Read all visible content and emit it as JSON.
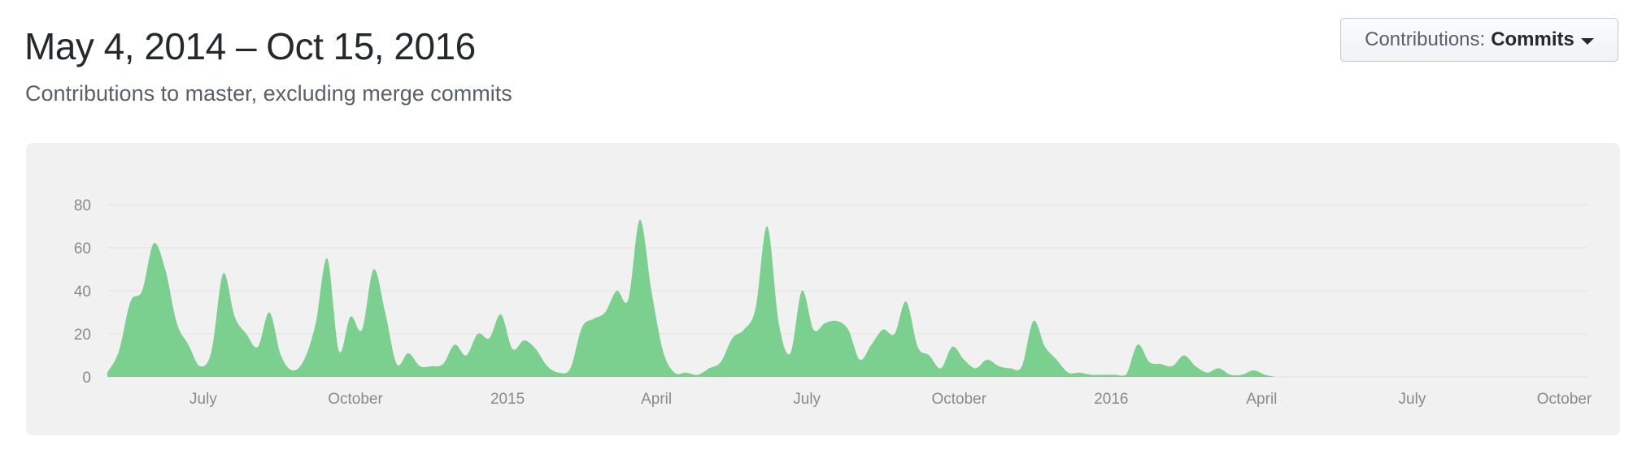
{
  "header": {
    "title": "May 4, 2014 – Oct 15, 2016",
    "subtitle": "Contributions to master, excluding merge commits"
  },
  "toolbar": {
    "contributions_label": "Contributions:",
    "contributions_value": "Commits",
    "caret_icon": "caret-down-icon"
  },
  "chart_data": {
    "type": "area",
    "title": "",
    "xlabel": "",
    "ylabel": "",
    "ylim": [
      0,
      80
    ],
    "yticks": [
      0,
      20,
      40,
      60,
      80
    ],
    "grid": true,
    "color": "#7bcf8f",
    "x_tick_labels": [
      {
        "label": "July",
        "date": "2014-07-01"
      },
      {
        "label": "October",
        "date": "2014-10-01"
      },
      {
        "label": "2015",
        "date": "2015-01-01"
      },
      {
        "label": "April",
        "date": "2015-04-01"
      },
      {
        "label": "July",
        "date": "2015-07-01"
      },
      {
        "label": "October",
        "date": "2015-10-01"
      },
      {
        "label": "2016",
        "date": "2016-01-01"
      },
      {
        "label": "April",
        "date": "2016-04-01"
      },
      {
        "label": "July",
        "date": "2016-07-01"
      },
      {
        "label": "October",
        "date": "2016-10-01"
      }
    ],
    "x_range": [
      "2014-05-04",
      "2016-10-15"
    ],
    "x": [
      "2014-05-04",
      "2014-05-11",
      "2014-05-18",
      "2014-05-25",
      "2014-06-01",
      "2014-06-08",
      "2014-06-15",
      "2014-06-22",
      "2014-06-29",
      "2014-07-06",
      "2014-07-13",
      "2014-07-20",
      "2014-07-27",
      "2014-08-03",
      "2014-08-10",
      "2014-08-17",
      "2014-08-24",
      "2014-08-31",
      "2014-09-07",
      "2014-09-14",
      "2014-09-21",
      "2014-09-28",
      "2014-10-05",
      "2014-10-12",
      "2014-10-19",
      "2014-10-26",
      "2014-11-02",
      "2014-11-09",
      "2014-11-16",
      "2014-11-23",
      "2014-11-30",
      "2014-12-07",
      "2014-12-14",
      "2014-12-21",
      "2014-12-28",
      "2015-01-04",
      "2015-01-11",
      "2015-01-18",
      "2015-01-25",
      "2015-02-01",
      "2015-02-08",
      "2015-02-15",
      "2015-02-22",
      "2015-03-01",
      "2015-03-08",
      "2015-03-15",
      "2015-03-22",
      "2015-03-29",
      "2015-04-05",
      "2015-04-12",
      "2015-04-19",
      "2015-04-26",
      "2015-05-03",
      "2015-05-10",
      "2015-05-17",
      "2015-05-24",
      "2015-05-31",
      "2015-06-07",
      "2015-06-14",
      "2015-06-21",
      "2015-06-28",
      "2015-07-05",
      "2015-07-12",
      "2015-07-19",
      "2015-07-26",
      "2015-08-02",
      "2015-08-09",
      "2015-08-16",
      "2015-08-23",
      "2015-08-30",
      "2015-09-06",
      "2015-09-13",
      "2015-09-20",
      "2015-09-27",
      "2015-10-04",
      "2015-10-11",
      "2015-10-18",
      "2015-10-25",
      "2015-11-01",
      "2015-11-08",
      "2015-11-15",
      "2015-11-22",
      "2015-11-29",
      "2015-12-06",
      "2015-12-13",
      "2015-12-20",
      "2015-12-27",
      "2016-01-03",
      "2016-01-10",
      "2016-01-17",
      "2016-01-24",
      "2016-01-31",
      "2016-02-07",
      "2016-02-14",
      "2016-02-21",
      "2016-02-28",
      "2016-03-06",
      "2016-03-13",
      "2016-03-20",
      "2016-03-27",
      "2016-04-03",
      "2016-04-10",
      "2016-04-17",
      "2016-04-24",
      "2016-05-01",
      "2016-05-08",
      "2016-05-15",
      "2016-05-22",
      "2016-05-29",
      "2016-06-05",
      "2016-06-12",
      "2016-06-19",
      "2016-06-26",
      "2016-07-03",
      "2016-07-10",
      "2016-07-17",
      "2016-07-24",
      "2016-07-31",
      "2016-08-07",
      "2016-08-14",
      "2016-08-21",
      "2016-08-28",
      "2016-09-04",
      "2016-09-11",
      "2016-09-18",
      "2016-09-25",
      "2016-10-02",
      "2016-10-09",
      "2016-10-15"
    ],
    "series": [
      {
        "values": [
          2,
          12,
          35,
          40,
          62,
          50,
          25,
          15,
          5,
          12,
          48,
          28,
          20,
          14,
          30,
          10,
          3,
          8,
          25,
          55,
          12,
          28,
          22,
          50,
          30,
          6,
          11,
          5,
          5,
          6,
          15,
          10,
          20,
          18,
          29,
          13,
          17,
          13,
          5,
          2,
          4,
          23,
          27,
          30,
          40,
          36,
          73,
          40,
          12,
          2,
          2,
          1,
          4,
          7,
          18,
          22,
          32,
          70,
          25,
          11,
          40,
          22,
          25,
          26,
          22,
          8,
          15,
          22,
          20,
          35,
          14,
          10,
          4,
          14,
          8,
          4,
          8,
          5,
          4,
          5,
          26,
          14,
          8,
          2,
          2,
          1,
          1,
          1,
          1,
          15,
          7,
          6,
          5,
          10,
          5,
          2,
          4,
          1,
          1,
          3,
          1,
          0,
          0,
          0,
          0,
          0,
          0,
          0,
          0,
          0,
          0,
          0,
          0,
          0,
          0,
          0,
          0,
          0,
          0,
          0,
          0,
          0,
          0,
          0,
          0,
          0,
          0,
          0,
          0
        ]
      }
    ]
  }
}
